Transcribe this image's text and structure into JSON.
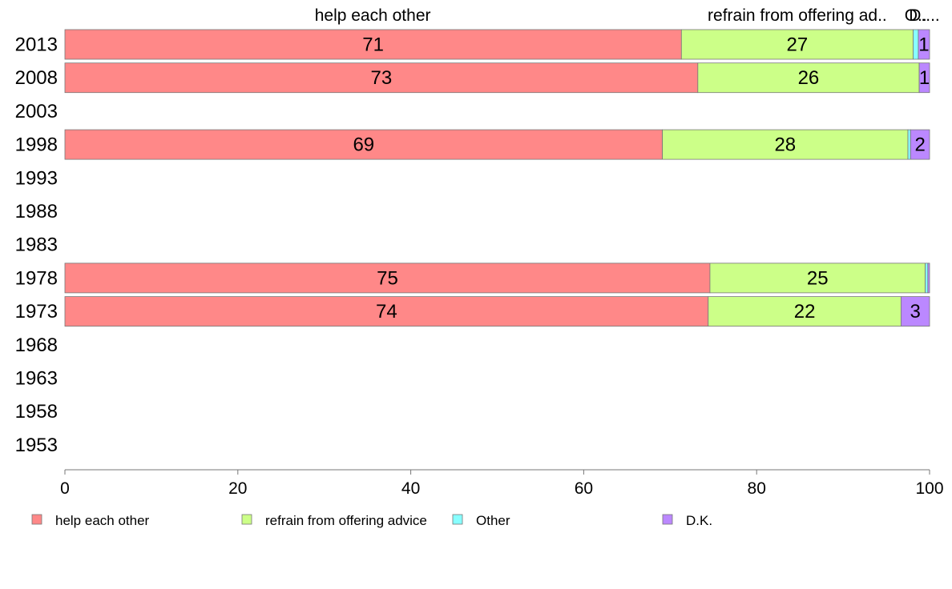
{
  "chart_data": {
    "type": "bar",
    "orientation": "horizontal",
    "stacked": true,
    "categories": [
      "2013",
      "2008",
      "2003",
      "1998",
      "1993",
      "1988",
      "1983",
      "1978",
      "1973",
      "1968",
      "1963",
      "1958",
      "1953"
    ],
    "series": [
      {
        "name": "help each other",
        "color": "#ff8888",
        "values": [
          71.3,
          73.2,
          null,
          69.1,
          null,
          null,
          null,
          74.6,
          74.4,
          null,
          null,
          null,
          null
        ],
        "labels": [
          "71",
          "73",
          "",
          "69",
          "",
          "",
          "",
          "75",
          "74",
          "",
          "",
          "",
          ""
        ]
      },
      {
        "name": "refrain from offering advice",
        "color": "#ccff88",
        "values": [
          26.8,
          25.6,
          null,
          28.4,
          null,
          null,
          null,
          24.9,
          22.3,
          null,
          null,
          null,
          null
        ],
        "labels": [
          "27",
          "26",
          "",
          "28",
          "",
          "",
          "",
          "25",
          "22",
          "",
          "",
          "",
          ""
        ]
      },
      {
        "name": "Other",
        "color": "#88ffff",
        "values": [
          0.6,
          0.0,
          null,
          0.3,
          null,
          null,
          null,
          0.3,
          0.0,
          null,
          null,
          null,
          null
        ],
        "labels": [
          "",
          "",
          "",
          "",
          "",
          "",
          "",
          "",
          "",
          "",
          "",
          "",
          ""
        ]
      },
      {
        "name": "D.K.",
        "color": "#bb88ff",
        "values": [
          1.3,
          1.2,
          null,
          2.2,
          null,
          null,
          null,
          0.2,
          3.3,
          null,
          null,
          null,
          null
        ],
        "labels": [
          "1",
          "1",
          "",
          "2",
          "",
          "",
          "",
          "",
          "3",
          "",
          "",
          "",
          ""
        ]
      }
    ],
    "top_labels": [
      {
        "text": "help each other",
        "x": 35.6
      },
      {
        "text": "refrain from offering ad..",
        "x": 84.7
      },
      {
        "text": "O..",
        "x": 98.4
      },
      {
        "text": "D....",
        "x": 99.4
      }
    ],
    "top_stray": {
      "text": "1",
      "x": 98.2
    },
    "x_ticks": [
      "0",
      "20",
      "40",
      "60",
      "80",
      "100"
    ],
    "xlim": [
      0,
      100
    ],
    "xlabel": "",
    "ylabel": "",
    "grid": false,
    "legend_position": "bottom"
  }
}
